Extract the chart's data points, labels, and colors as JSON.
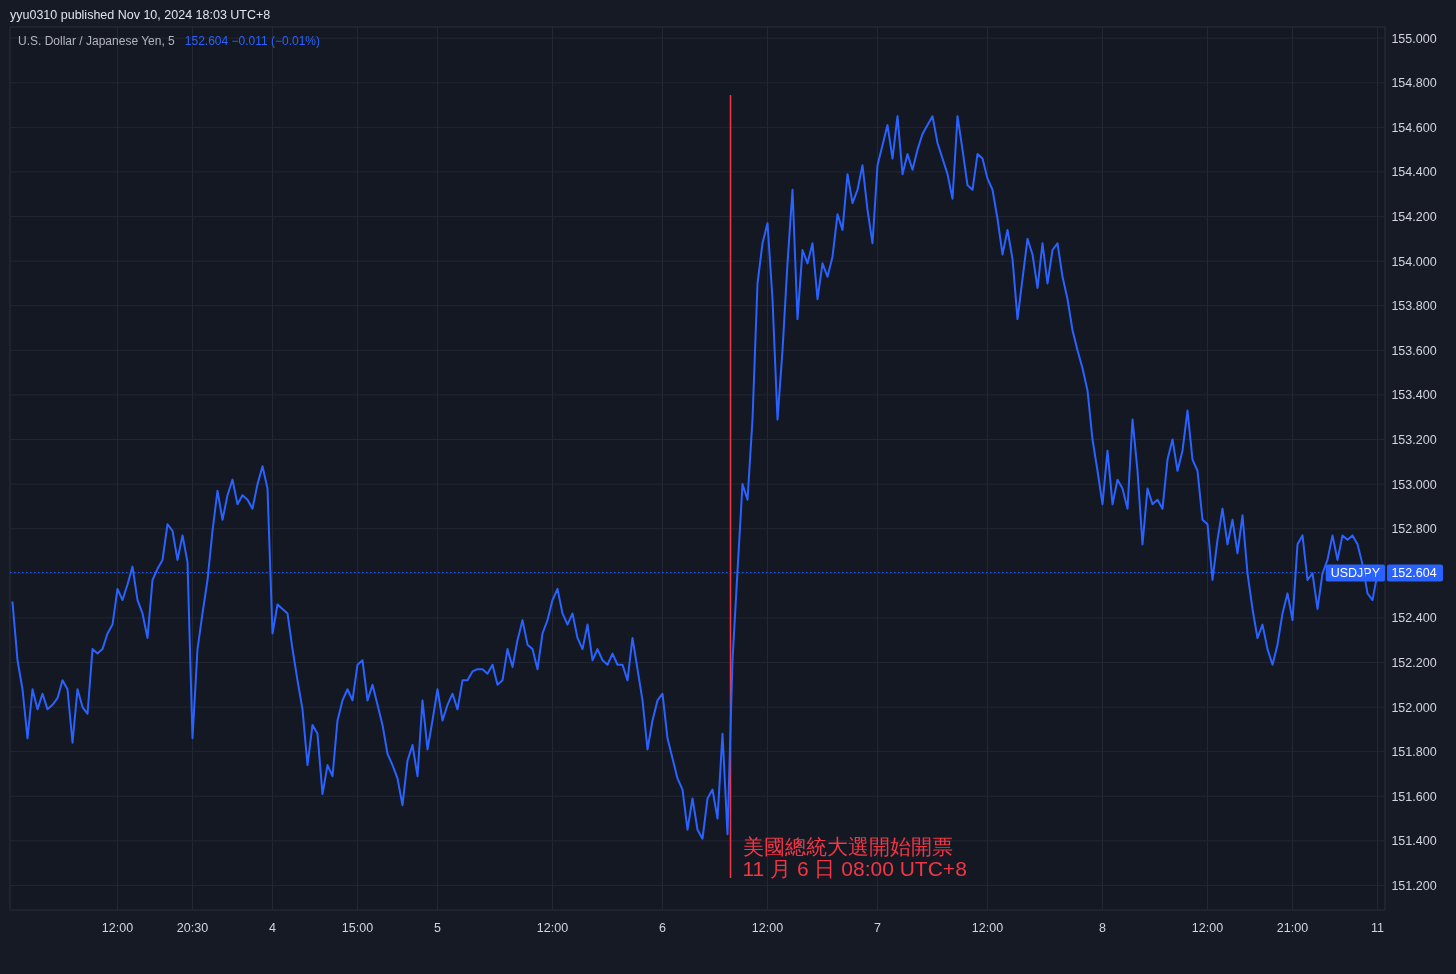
{
  "chart_data": {
    "type": "line",
    "title": "U.S. Dollar / Japanese Yen, 5",
    "subtitle": "152.604  −0.011 (−0.01%)",
    "annotations": [
      "yyu0310 published Nov 10, 2024 18:03 UTC+8",
      "美國總統大選開始開票",
      "11 月 6 日 08:00 UTC+8"
    ],
    "categories": [
      null,
      null,
      null,
      null,
      null,
      null,
      null,
      null,
      null,
      null,
      null,
      null,
      null,
      null,
      null,
      null,
      null,
      null,
      null,
      null,
      null,
      "12:00",
      null,
      null,
      null,
      null,
      null,
      null,
      null,
      null,
      null,
      null,
      null,
      null,
      null,
      null,
      "20:30",
      null,
      null,
      null,
      null,
      null,
      null,
      null,
      null,
      null,
      null,
      null,
      null,
      null,
      null,
      null,
      "4",
      null,
      null,
      null,
      null,
      null,
      null,
      null,
      null,
      null,
      null,
      null,
      null,
      null,
      null,
      null,
      null,
      "15:00",
      null,
      null,
      null,
      null,
      null,
      null,
      null,
      null,
      null,
      null,
      null,
      null,
      null,
      null,
      null,
      "5",
      null,
      null,
      null,
      null,
      null,
      null,
      null,
      null,
      null,
      null,
      null,
      null,
      null,
      null,
      null,
      null,
      null,
      null,
      null,
      null,
      null,
      null,
      "12:00",
      null,
      null,
      null,
      null,
      null,
      null,
      null,
      null,
      null,
      null,
      null,
      null,
      null,
      null,
      null,
      null,
      null,
      null,
      null,
      null,
      null,
      "6",
      null,
      null,
      null,
      null,
      null,
      null,
      null,
      null,
      null,
      null,
      null,
      null,
      null,
      null,
      null,
      null,
      null,
      null,
      null,
      null,
      "12:00",
      null,
      null,
      null,
      null,
      null,
      null,
      null,
      null,
      null,
      null,
      null,
      null,
      null,
      null,
      null,
      null,
      null,
      null,
      null,
      null,
      null,
      "7",
      null,
      null,
      null,
      null,
      null,
      null,
      null,
      null,
      null,
      null,
      null,
      null,
      null,
      null,
      null,
      null,
      null,
      null,
      null,
      null,
      null,
      "12:00",
      null,
      null,
      null,
      null,
      null,
      null,
      null,
      null,
      null,
      null,
      null,
      null,
      null,
      null,
      null,
      null,
      null,
      null,
      null,
      null,
      null,
      null,
      "8",
      null,
      null,
      null,
      null,
      null,
      null,
      null,
      null,
      null,
      null,
      null,
      null,
      null,
      null,
      null,
      null,
      null,
      null,
      null,
      null,
      "12:00",
      null,
      null,
      null,
      null,
      null,
      null,
      null,
      null,
      null,
      null,
      null,
      null,
      null,
      null,
      null,
      null,
      "21:00",
      null,
      null,
      null,
      null,
      null,
      null,
      null,
      null,
      null,
      null,
      null,
      null,
      null,
      null,
      null,
      null,
      "11"
    ],
    "series": [
      {
        "color": "#2962ff",
        "values": [
          152.47,
          152.21,
          152.08,
          151.86,
          152.08,
          151.99,
          152.06,
          151.99,
          152.01,
          152.04,
          152.12,
          152.08,
          151.84,
          152.08,
          152.0,
          151.97,
          152.26,
          152.24,
          152.26,
          152.33,
          152.37,
          152.53,
          152.48,
          152.55,
          152.63,
          152.48,
          152.42,
          152.31,
          152.57,
          152.62,
          152.66,
          152.82,
          152.79,
          152.66,
          152.77,
          152.65,
          151.86,
          152.26,
          152.42,
          152.57,
          152.79,
          152.97,
          152.84,
          152.95,
          153.02,
          152.91,
          152.95,
          152.93,
          152.89,
          153.0,
          153.08,
          152.98,
          152.33,
          152.46,
          152.44,
          152.42,
          152.26,
          152.12,
          151.99,
          151.74,
          151.92,
          151.88,
          151.61,
          151.74,
          151.69,
          151.94,
          152.03,
          152.08,
          152.03,
          152.19,
          152.21,
          152.03,
          152.1,
          152.01,
          151.92,
          151.79,
          151.74,
          151.68,
          151.56,
          151.76,
          151.83,
          151.69,
          152.03,
          151.81,
          151.94,
          152.08,
          151.94,
          152.01,
          152.06,
          151.99,
          152.12,
          152.12,
          152.16,
          152.17,
          152.17,
          152.15,
          152.19,
          152.1,
          152.12,
          152.26,
          152.18,
          152.3,
          152.39,
          152.28,
          152.26,
          152.17,
          152.33,
          152.39,
          152.48,
          152.53,
          152.42,
          152.37,
          152.42,
          152.31,
          152.26,
          152.37,
          152.21,
          152.26,
          152.21,
          152.19,
          152.24,
          152.19,
          152.19,
          152.12,
          152.31,
          152.17,
          152.03,
          151.81,
          151.94,
          152.03,
          152.06,
          151.86,
          151.77,
          151.68,
          151.63,
          151.45,
          151.59,
          151.45,
          151.41,
          151.59,
          151.63,
          151.5,
          151.88,
          151.43,
          152.21,
          152.61,
          153.0,
          152.93,
          153.29,
          153.9,
          154.08,
          154.17,
          153.83,
          153.29,
          153.6,
          153.99,
          154.32,
          153.74,
          154.05,
          153.99,
          154.08,
          153.83,
          153.99,
          153.93,
          154.02,
          154.21,
          154.14,
          154.39,
          154.26,
          154.32,
          154.43,
          154.23,
          154.08,
          154.43,
          154.52,
          154.61,
          154.46,
          154.65,
          154.39,
          154.48,
          154.41,
          154.5,
          154.57,
          154.61,
          154.65,
          154.53,
          154.46,
          154.39,
          154.28,
          154.65,
          154.5,
          154.34,
          154.32,
          154.48,
          154.46,
          154.37,
          154.32,
          154.19,
          154.03,
          154.14,
          154.01,
          153.74,
          153.92,
          154.1,
          154.03,
          153.88,
          154.08,
          153.9,
          154.05,
          154.08,
          153.93,
          153.83,
          153.69,
          153.6,
          153.52,
          153.42,
          153.2,
          153.06,
          152.91,
          153.15,
          152.91,
          153.02,
          152.98,
          152.89,
          153.29,
          153.06,
          152.73,
          152.98,
          152.91,
          152.93,
          152.89,
          153.11,
          153.2,
          153.06,
          153.15,
          153.33,
          153.11,
          153.06,
          152.84,
          152.82,
          152.57,
          152.75,
          152.89,
          152.73,
          152.84,
          152.69,
          152.86,
          152.6,
          152.44,
          152.31,
          152.37,
          152.26,
          152.19,
          152.28,
          152.42,
          152.51,
          152.39,
          152.73,
          152.77,
          152.57,
          152.6,
          152.44,
          152.6,
          152.66,
          152.77,
          152.66,
          152.77,
          152.75,
          152.77,
          152.73,
          152.64,
          152.51,
          152.48,
          152.6
        ]
      }
    ],
    "ylim": [
      151.09,
      155.05
    ],
    "yticks": [
      {
        "value": 151.2,
        "label": "151.200"
      },
      {
        "value": 151.4,
        "label": "151.400"
      },
      {
        "value": 151.6,
        "label": "151.600"
      },
      {
        "value": 151.8,
        "label": "151.800"
      },
      {
        "value": 152.0,
        "label": "152.000"
      },
      {
        "value": 152.2,
        "label": "152.200"
      },
      {
        "value": 152.4,
        "label": "152.400"
      },
      {
        "value": 152.6,
        "label": null
      },
      {
        "value": 152.604,
        "label": "152.604"
      },
      {
        "value": 152.8,
        "label": "152.800"
      },
      {
        "value": 153.0,
        "label": "153.000"
      },
      {
        "value": 153.2,
        "label": "153.200"
      },
      {
        "value": 153.4,
        "label": "153.400"
      },
      {
        "value": 153.6,
        "label": "153.600"
      },
      {
        "value": 153.8,
        "label": "153.800"
      },
      {
        "value": 154.0,
        "label": "154.000"
      },
      {
        "value": 154.2,
        "label": "154.200"
      },
      {
        "value": 154.4,
        "label": "154.400"
      },
      {
        "value": 154.6,
        "label": "154.600"
      },
      {
        "value": 154.8,
        "label": "154.800"
      },
      {
        "value": 155.0,
        "label": "155.000"
      }
    ],
    "ref_lines": [
      {
        "axis": "y",
        "value": 152.604,
        "label": "USDJPY",
        "color": "#2962ff",
        "line_style": "dotted"
      }
    ],
    "grid": true,
    "marker": "none",
    "line_style": "solid"
  }
}
